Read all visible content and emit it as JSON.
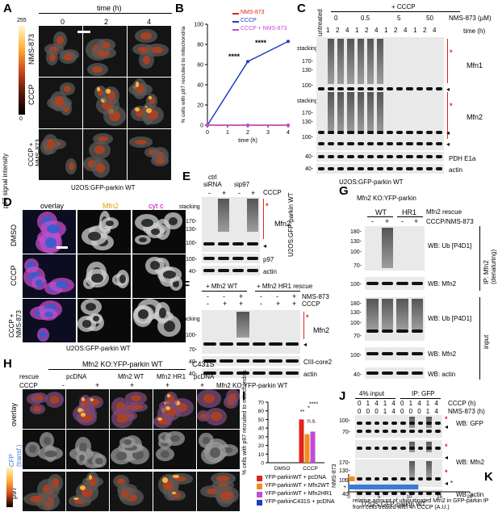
{
  "panels": {
    "A": {
      "letter": "A",
      "time_header": "time (h)",
      "times": [
        "0",
        "2",
        "4"
      ],
      "rows": [
        "NMS-873",
        "CCCP",
        "CCCP +\nNMS-873"
      ],
      "scale_max": "255",
      "scale_min": "0",
      "scale_label": "p97 signal intensity",
      "cell_line": "U2OS:GFP-parkin WT"
    },
    "B": {
      "letter": "B",
      "legend": [
        "NMS-873",
        "CCCP",
        "CCCP + NMS-873"
      ],
      "legend_colors": [
        "#e2231a",
        "#1f3fbf",
        "#c04bd6"
      ],
      "stars": [
        "****",
        "****"
      ]
    },
    "C": {
      "letter": "C",
      "untreated": "untreated",
      "cccp": "+ CCCP",
      "doses": [
        "0",
        "0.5",
        "5",
        "50"
      ],
      "dose_label": "NMS-873 (µM)",
      "times": [
        "1",
        "2",
        "4",
        "1",
        "2",
        "4",
        "1",
        "2",
        "4",
        "1",
        "2",
        "4"
      ],
      "time_label": "time (h)",
      "stacking": "stacking",
      "markers_top": [
        "170-",
        "130-",
        "100-"
      ],
      "markers_mid": [
        "170-",
        "130-",
        "100-"
      ],
      "markers_bot": [
        "40-",
        "40-"
      ],
      "proteins": [
        "Mfn1",
        "Mfn2",
        "PDH E1a",
        "actin"
      ],
      "cell_line": "U2OS:GFP-parkin WT"
    },
    "D": {
      "letter": "D",
      "cols": [
        "overlay",
        "Mfn2",
        "cyt c"
      ],
      "rows": [
        "DMSO",
        "CCCP",
        "CCCP +\nNMS-873"
      ],
      "cell_line": "U2OS:GFP-parkin WT"
    },
    "E": {
      "letter": "E",
      "groups": [
        "ctrl\nsiRNA",
        "sip97"
      ],
      "cccp": "CCCP",
      "signs": [
        "-",
        "+",
        "-",
        "+"
      ],
      "stacking": "stacking",
      "markers": [
        "170-",
        "130-",
        "100-",
        "100-",
        "40-"
      ],
      "proteins": [
        "Mfn2",
        "p97",
        "actin"
      ],
      "cell_line": "U2OS:GFP-parkin WT"
    },
    "F": {
      "letter": "F",
      "groups": [
        "+ Mfn2 WT",
        "+ Mfn2 HR1 rescue"
      ],
      "nms": "NMS-873",
      "cccp": "CCCP",
      "nms_signs": [
        "-",
        "-",
        "+",
        "-",
        "-",
        "+"
      ],
      "cccp_signs": [
        "-",
        "+",
        "+",
        "-",
        "+",
        "+"
      ],
      "stacking": "stacking",
      "markers": [
        "100-",
        "70-",
        "40-",
        "40-"
      ],
      "proteins": [
        "Mfn2",
        "CIII-core2",
        "actin"
      ],
      "cell_line": "Mfn2 KO:YFP-parkin WT"
    },
    "G": {
      "letter": "G",
      "title": "Mfn2 KO:YFP-parkin",
      "groups": [
        "WT",
        "HR1"
      ],
      "rescue": "Mfn2 rescue",
      "treat": "CCCP/NMS-873",
      "signs": [
        "-",
        "+",
        "-",
        "+"
      ],
      "markers_a": [
        "180-",
        "130-",
        "100-",
        "70-"
      ],
      "markers_b": [
        "100-"
      ],
      "markers_c": [
        "180-",
        "130-",
        "100-",
        "70-"
      ],
      "markers_d": [
        "100-",
        "40-"
      ],
      "wb": [
        "WB: Ub [P4D1]",
        "WB: Mfn2",
        "WB: Ub [P4D1]",
        "WB: Mfn2",
        "WB: actin"
      ],
      "ip": "IP: Mfn2\n(denaturing)",
      "input": "input"
    },
    "H": {
      "letter": "H",
      "title": "Mfn2 KO:YFP-parkin WT",
      "c431s": "C431S",
      "rescue": "rescue",
      "rescues": [
        "pcDNA",
        "Mfn2 WT",
        "Mfn2 HR1",
        "pcDNA"
      ],
      "cccp": "CCCP",
      "signs": [
        "-",
        "+",
        "+",
        "+",
        "+"
      ],
      "rows": [
        "overlay",
        "CFP\n(transf.)",
        "p97"
      ]
    },
    "I": {
      "letter": "I",
      "ylabel": "% cells with p97 recruited to mitochondria",
      "x": [
        "DMSO",
        "CCCP"
      ],
      "sig": [
        "**",
        "*",
        "****",
        "n.s."
      ],
      "legend": [
        "YFP-parkinWT + pcDNA",
        "YFP-parkinWT + Mfn2WT",
        "YFP-parkinWT + Mfn2HR1",
        "YFP-parkinC431S + pcDNA"
      ],
      "legend_colors": [
        "#e2231a",
        "#f28c1e",
        "#c04bd6",
        "#1f3fbf"
      ]
    },
    "J": {
      "letter": "J",
      "input": "4% input",
      "ip": "IP: GFP",
      "cccp": "CCCP (h)",
      "nms": "NMS-873 (h)",
      "cccp_vals": [
        "0",
        "1",
        "4",
        "1",
        "4",
        "0",
        "1",
        "4",
        "1",
        "4"
      ],
      "nms_vals": [
        "0",
        "0",
        "0",
        "1",
        "4",
        "0",
        "0",
        "0",
        "1",
        "4"
      ],
      "markers_a": [
        "100-",
        "70-"
      ],
      "markers_b": [
        "170-",
        "130-",
        "100-"
      ],
      "markers_c": [
        "40-"
      ],
      "wb": [
        "WB: GFP",
        "WB: Mfn2",
        "WB: actin"
      ],
      "cell_line": "U2OS:GFP-parkin WT"
    },
    "K": {
      "letter": "K",
      "ylabel": "NMS-873",
      "categories": [
        "-",
        "+"
      ],
      "xlabel": "relative amount of ubiquitinated Mfn2 in GFP-parkin IP\nfrom cells treated with 4h CCCP (A.U.)",
      "ticks": [
        "0",
        "5",
        "10",
        "15",
        "20"
      ],
      "star": "*"
    }
  },
  "chart_data": [
    {
      "type": "line",
      "panel": "B",
      "xlabel": "time (h)",
      "ylabel": "% cells with p97 recruited to mitochondria",
      "xlim": [
        0,
        4
      ],
      "ylim": [
        0,
        100
      ],
      "xticks": [
        "0",
        "1",
        "2",
        "3",
        "4"
      ],
      "yticks": [
        "0",
        "20",
        "40",
        "60",
        "80",
        "100"
      ],
      "series": [
        {
          "name": "NMS-873",
          "x": [
            0,
            2,
            4
          ],
          "values": [
            0,
            0,
            0
          ]
        },
        {
          "name": "CCCP",
          "x": [
            0,
            2,
            4
          ],
          "values": [
            0,
            63,
            83
          ]
        },
        {
          "name": "CCCP + NMS-873",
          "x": [
            0,
            2,
            4
          ],
          "values": [
            0,
            0,
            0
          ]
        }
      ]
    },
    {
      "type": "bar",
      "panel": "I",
      "categories": [
        "DMSO",
        "CCCP"
      ],
      "ylim": [
        0,
        70
      ],
      "yticks": [
        "0",
        "10",
        "20",
        "30",
        "40",
        "50",
        "60",
        "70"
      ],
      "series": [
        {
          "name": "YFP-parkinWT + pcDNA",
          "values": [
            0,
            50
          ]
        },
        {
          "name": "YFP-parkinWT + Mfn2WT",
          "values": [
            0,
            33
          ]
        },
        {
          "name": "YFP-parkinWT + Mfn2HR1",
          "values": [
            0,
            36
          ]
        },
        {
          "name": "YFP-parkinC431S + pcDNA",
          "values": [
            0,
            0
          ]
        }
      ]
    },
    {
      "type": "bar",
      "panel": "K",
      "orientation": "horizontal",
      "categories": [
        "-",
        "+"
      ],
      "xlim": [
        0,
        20
      ],
      "values": [
        1,
        11.5
      ]
    }
  ]
}
